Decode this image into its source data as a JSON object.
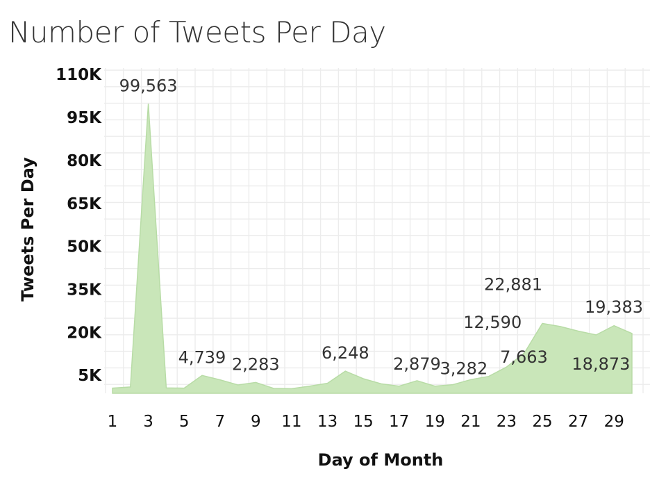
{
  "chart_data": {
    "type": "area",
    "title": "Number of Tweets Per Day",
    "xlabel": "Day of Month",
    "ylabel": "Tweets Per Day",
    "x": [
      1,
      2,
      3,
      4,
      5,
      6,
      7,
      8,
      9,
      10,
      11,
      12,
      13,
      14,
      15,
      16,
      17,
      18,
      19,
      20,
      21,
      22,
      23,
      24,
      25,
      26,
      27,
      28,
      29,
      30
    ],
    "values": [
      300,
      700,
      99563,
      400,
      300,
      4739,
      3200,
      1400,
      2283,
      200,
      100,
      1000,
      2000,
      6248,
      3600,
      1800,
      1000,
      2879,
      1000,
      1500,
      3282,
      4400,
      7663,
      12590,
      22881,
      21800,
      20200,
      18873,
      22100,
      19383
    ],
    "xticks": [
      "1",
      "3",
      "5",
      "7",
      "9",
      "11",
      "13",
      "15",
      "17",
      "19",
      "21",
      "23",
      "25",
      "27",
      "29"
    ],
    "yticks": [
      "5K",
      "20K",
      "35K",
      "50K",
      "65K",
      "80K",
      "95K",
      "110K"
    ],
    "ylim": [
      -1500,
      112000
    ],
    "color": "#c9e6b9",
    "grid": true,
    "data_labels": [
      {
        "x": 3,
        "text": "99,563"
      },
      {
        "x": 6,
        "text": "4,739"
      },
      {
        "x": 9,
        "text": "2,283"
      },
      {
        "x": 14,
        "text": "6,248"
      },
      {
        "x": 18,
        "text": "2,879"
      },
      {
        "x": 21,
        "text": "3,282"
      },
      {
        "x": 23,
        "text": "7,663"
      },
      {
        "x": 24,
        "text": "12,590"
      },
      {
        "x": 25,
        "text": "22,881"
      },
      {
        "x": 28,
        "text": "18,873"
      },
      {
        "x": 30,
        "text": "19,383"
      }
    ]
  }
}
